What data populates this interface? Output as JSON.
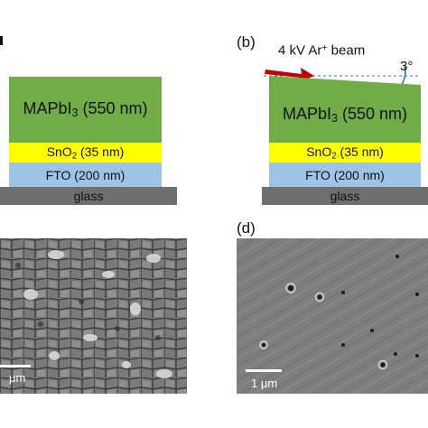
{
  "panel_a": {
    "layers": {
      "top": "MAPbI",
      "top_sub": "3",
      "top_suffix": " (550 nm)",
      "sno2": "SnO",
      "sno2_sub": "2",
      "sno2_suffix": " (35 nm)",
      "fto": "FTO (200 nm)",
      "glass": "glass"
    }
  },
  "panel_b": {
    "label": "(b)",
    "beam_label": "4 kV Ar",
    "beam_sup": "+",
    "beam_suffix": " beam",
    "angle": "3°",
    "layers": {
      "top": "MAPbI",
      "top_sub": "3",
      "top_suffix": " (550 nm)",
      "sno2": "SnO",
      "sno2_sub": "2",
      "sno2_suffix": " (35 nm)",
      "fto": "FTO (200 nm)",
      "glass": "glass"
    }
  },
  "panel_c": {
    "scale_text": "μm"
  },
  "panel_d": {
    "label": "(d)",
    "scale_text": "1 μm"
  },
  "colors": {
    "perovskite": "#70ad47",
    "sno2": "#ffff00",
    "fto": "#9dc3e6",
    "glass": "#6f6f6f",
    "beam_arrow": "#c00000",
    "angle_arc": "#2e75b6",
    "sem_background": "#7c7c7c"
  }
}
